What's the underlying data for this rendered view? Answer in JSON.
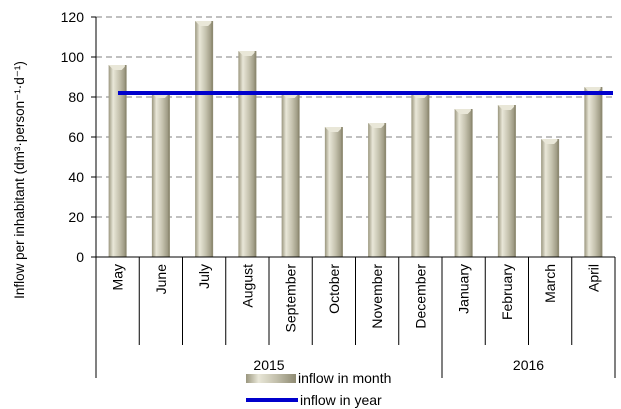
{
  "chart_data": {
    "type": "bar",
    "ylabel": "Inflow per inhabitant (dm³·person⁻¹·d⁻¹)",
    "ylim": [
      0,
      120
    ],
    "yticks": [
      "0",
      "20",
      "40",
      "60",
      "80",
      "100",
      "120"
    ],
    "categories": [
      "May",
      "June",
      "July",
      "August",
      "September",
      "October",
      "November",
      "December",
      "January",
      "February",
      "March",
      "April"
    ],
    "groups": [
      {
        "label": "2015",
        "count": 8
      },
      {
        "label": "2016",
        "count": 4
      }
    ],
    "series": [
      {
        "name": "inflow in month",
        "type": "bar",
        "values": [
          96,
          82,
          118,
          103,
          82,
          65,
          67,
          82,
          74,
          76,
          59,
          85
        ]
      },
      {
        "name": "inflow in year",
        "type": "line",
        "value": 82
      }
    ],
    "grid": "horizontal dashed",
    "legend_position": "bottom",
    "colors": {
      "bar_front": "#c4c1ad",
      "bar_light": "#e9e7d8",
      "bar_dark": "#8e8a72",
      "line": "#0000cc",
      "grid": "#9a9a9a"
    }
  }
}
